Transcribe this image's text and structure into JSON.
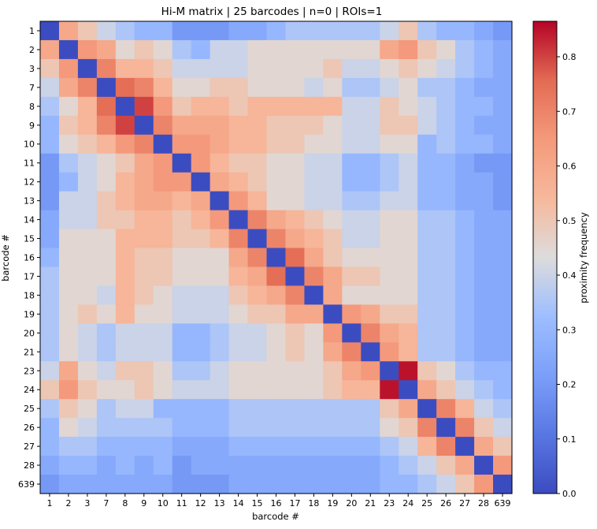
{
  "chart_data": {
    "type": "heatmap",
    "title": "Hi-M matrix | 25 barcodes | n=0 | ROIs=1",
    "xlabel": "barcode #",
    "ylabel": "barcode #",
    "labels": [
      "1",
      "2",
      "3",
      "7",
      "8",
      "9",
      "10",
      "11",
      "12",
      "13",
      "14",
      "15",
      "16",
      "17",
      "18",
      "19",
      "20",
      "21",
      "23",
      "24",
      "25",
      "26",
      "27",
      "28",
      "639"
    ],
    "colorbar": {
      "label": "proximity frequency",
      "range": [
        0.0,
        0.865
      ],
      "ticks": [
        0.0,
        0.1,
        0.2,
        0.3,
        0.4,
        0.5,
        0.6,
        0.7,
        0.8
      ],
      "tick_labels": [
        "0.0",
        "0.1",
        "0.2",
        "0.3",
        "0.4",
        "0.5",
        "0.6",
        "0.7",
        "0.8"
      ]
    },
    "colormap": "coolwarm",
    "diagonal_value": 0.0,
    "values": [
      [
        0.0,
        0.6,
        0.5,
        0.4,
        0.35,
        0.3,
        0.3,
        0.2,
        0.2,
        0.2,
        0.25,
        0.25,
        0.3,
        0.35,
        0.35,
        0.35,
        0.35,
        0.35,
        0.4,
        0.5,
        0.35,
        0.3,
        0.3,
        0.25,
        0.2
      ],
      [
        0.6,
        0.0,
        0.65,
        0.6,
        0.45,
        0.5,
        0.45,
        0.35,
        0.3,
        0.4,
        0.4,
        0.45,
        0.45,
        0.45,
        0.45,
        0.45,
        0.45,
        0.45,
        0.6,
        0.65,
        0.5,
        0.45,
        0.35,
        0.3,
        0.25
      ],
      [
        0.5,
        0.65,
        0.0,
        0.7,
        0.55,
        0.55,
        0.5,
        0.4,
        0.4,
        0.4,
        0.4,
        0.45,
        0.45,
        0.45,
        0.45,
        0.5,
        0.4,
        0.4,
        0.45,
        0.5,
        0.45,
        0.4,
        0.35,
        0.3,
        0.25
      ],
      [
        0.4,
        0.6,
        0.7,
        0.0,
        0.75,
        0.7,
        0.55,
        0.45,
        0.45,
        0.5,
        0.5,
        0.45,
        0.45,
        0.45,
        0.4,
        0.45,
        0.35,
        0.35,
        0.4,
        0.45,
        0.35,
        0.35,
        0.3,
        0.25,
        0.25
      ],
      [
        0.35,
        0.45,
        0.55,
        0.75,
        0.0,
        0.8,
        0.65,
        0.5,
        0.55,
        0.55,
        0.5,
        0.55,
        0.55,
        0.55,
        0.55,
        0.55,
        0.4,
        0.4,
        0.5,
        0.45,
        0.4,
        0.35,
        0.3,
        0.3,
        0.25
      ],
      [
        0.3,
        0.5,
        0.55,
        0.7,
        0.8,
        0.0,
        0.7,
        0.6,
        0.6,
        0.6,
        0.55,
        0.55,
        0.5,
        0.5,
        0.5,
        0.45,
        0.4,
        0.4,
        0.5,
        0.5,
        0.4,
        0.35,
        0.3,
        0.25,
        0.25
      ],
      [
        0.3,
        0.45,
        0.5,
        0.55,
        0.65,
        0.7,
        0.0,
        0.65,
        0.65,
        0.6,
        0.55,
        0.55,
        0.5,
        0.5,
        0.45,
        0.45,
        0.4,
        0.4,
        0.45,
        0.45,
        0.3,
        0.35,
        0.3,
        0.3,
        0.25
      ],
      [
        0.2,
        0.35,
        0.4,
        0.45,
        0.5,
        0.6,
        0.65,
        0.0,
        0.65,
        0.55,
        0.5,
        0.5,
        0.45,
        0.45,
        0.4,
        0.4,
        0.3,
        0.3,
        0.35,
        0.4,
        0.3,
        0.3,
        0.25,
        0.2,
        0.2
      ],
      [
        0.2,
        0.3,
        0.4,
        0.45,
        0.55,
        0.6,
        0.65,
        0.65,
        0.0,
        0.6,
        0.55,
        0.5,
        0.45,
        0.45,
        0.4,
        0.4,
        0.3,
        0.3,
        0.35,
        0.4,
        0.3,
        0.3,
        0.25,
        0.25,
        0.2
      ],
      [
        0.2,
        0.4,
        0.4,
        0.5,
        0.55,
        0.6,
        0.6,
        0.55,
        0.6,
        0.0,
        0.65,
        0.55,
        0.45,
        0.45,
        0.4,
        0.4,
        0.35,
        0.35,
        0.4,
        0.4,
        0.3,
        0.3,
        0.25,
        0.25,
        0.2
      ],
      [
        0.25,
        0.4,
        0.4,
        0.5,
        0.5,
        0.55,
        0.55,
        0.5,
        0.55,
        0.65,
        0.0,
        0.7,
        0.6,
        0.55,
        0.5,
        0.45,
        0.4,
        0.4,
        0.45,
        0.45,
        0.35,
        0.35,
        0.3,
        0.25,
        0.25
      ],
      [
        0.25,
        0.45,
        0.45,
        0.45,
        0.55,
        0.55,
        0.55,
        0.5,
        0.5,
        0.55,
        0.7,
        0.0,
        0.7,
        0.6,
        0.55,
        0.5,
        0.4,
        0.4,
        0.45,
        0.45,
        0.35,
        0.35,
        0.3,
        0.25,
        0.25
      ],
      [
        0.3,
        0.45,
        0.45,
        0.45,
        0.55,
        0.5,
        0.5,
        0.45,
        0.45,
        0.45,
        0.6,
        0.7,
        0.0,
        0.75,
        0.6,
        0.5,
        0.45,
        0.45,
        0.45,
        0.45,
        0.35,
        0.35,
        0.3,
        0.25,
        0.25
      ],
      [
        0.35,
        0.45,
        0.45,
        0.45,
        0.55,
        0.5,
        0.5,
        0.45,
        0.45,
        0.45,
        0.55,
        0.6,
        0.75,
        0.0,
        0.7,
        0.6,
        0.5,
        0.5,
        0.45,
        0.45,
        0.35,
        0.35,
        0.3,
        0.25,
        0.25
      ],
      [
        0.35,
        0.45,
        0.45,
        0.4,
        0.55,
        0.5,
        0.45,
        0.4,
        0.4,
        0.4,
        0.5,
        0.55,
        0.6,
        0.7,
        0.0,
        0.6,
        0.45,
        0.45,
        0.45,
        0.45,
        0.35,
        0.35,
        0.3,
        0.25,
        0.25
      ],
      [
        0.35,
        0.45,
        0.5,
        0.45,
        0.55,
        0.45,
        0.45,
        0.4,
        0.4,
        0.4,
        0.45,
        0.5,
        0.5,
        0.6,
        0.6,
        0.0,
        0.65,
        0.6,
        0.5,
        0.5,
        0.35,
        0.35,
        0.3,
        0.25,
        0.25
      ],
      [
        0.35,
        0.45,
        0.4,
        0.35,
        0.4,
        0.4,
        0.4,
        0.3,
        0.3,
        0.35,
        0.4,
        0.4,
        0.45,
        0.5,
        0.45,
        0.65,
        0.0,
        0.7,
        0.6,
        0.55,
        0.35,
        0.35,
        0.3,
        0.25,
        0.25
      ],
      [
        0.35,
        0.45,
        0.4,
        0.35,
        0.4,
        0.4,
        0.4,
        0.3,
        0.3,
        0.35,
        0.4,
        0.4,
        0.45,
        0.5,
        0.45,
        0.6,
        0.7,
        0.0,
        0.65,
        0.55,
        0.35,
        0.35,
        0.3,
        0.25,
        0.25
      ],
      [
        0.4,
        0.6,
        0.45,
        0.4,
        0.5,
        0.5,
        0.45,
        0.35,
        0.35,
        0.4,
        0.45,
        0.45,
        0.45,
        0.45,
        0.45,
        0.5,
        0.6,
        0.65,
        0.0,
        0.85,
        0.5,
        0.45,
        0.35,
        0.3,
        0.3
      ],
      [
        0.5,
        0.65,
        0.5,
        0.45,
        0.45,
        0.5,
        0.45,
        0.4,
        0.4,
        0.4,
        0.45,
        0.45,
        0.45,
        0.45,
        0.45,
        0.5,
        0.55,
        0.55,
        0.85,
        0.0,
        0.6,
        0.5,
        0.4,
        0.35,
        0.3
      ],
      [
        0.35,
        0.5,
        0.45,
        0.35,
        0.4,
        0.4,
        0.3,
        0.3,
        0.3,
        0.3,
        0.35,
        0.35,
        0.35,
        0.35,
        0.35,
        0.35,
        0.35,
        0.35,
        0.5,
        0.6,
        0.0,
        0.7,
        0.55,
        0.4,
        0.35
      ],
      [
        0.3,
        0.45,
        0.4,
        0.35,
        0.35,
        0.35,
        0.35,
        0.3,
        0.3,
        0.3,
        0.35,
        0.35,
        0.35,
        0.35,
        0.35,
        0.35,
        0.35,
        0.35,
        0.45,
        0.5,
        0.7,
        0.0,
        0.7,
        0.5,
        0.4
      ],
      [
        0.3,
        0.35,
        0.35,
        0.3,
        0.3,
        0.3,
        0.3,
        0.25,
        0.25,
        0.25,
        0.3,
        0.3,
        0.3,
        0.3,
        0.3,
        0.3,
        0.3,
        0.3,
        0.35,
        0.4,
        0.55,
        0.7,
        0.0,
        0.6,
        0.5
      ],
      [
        0.25,
        0.3,
        0.3,
        0.25,
        0.3,
        0.25,
        0.3,
        0.2,
        0.25,
        0.25,
        0.25,
        0.25,
        0.25,
        0.25,
        0.25,
        0.25,
        0.25,
        0.25,
        0.3,
        0.35,
        0.4,
        0.5,
        0.6,
        0.0,
        0.65
      ],
      [
        0.2,
        0.25,
        0.25,
        0.25,
        0.25,
        0.25,
        0.25,
        0.2,
        0.2,
        0.2,
        0.25,
        0.25,
        0.25,
        0.25,
        0.25,
        0.25,
        0.25,
        0.25,
        0.3,
        0.3,
        0.35,
        0.4,
        0.5,
        0.65,
        0.0
      ]
    ]
  }
}
